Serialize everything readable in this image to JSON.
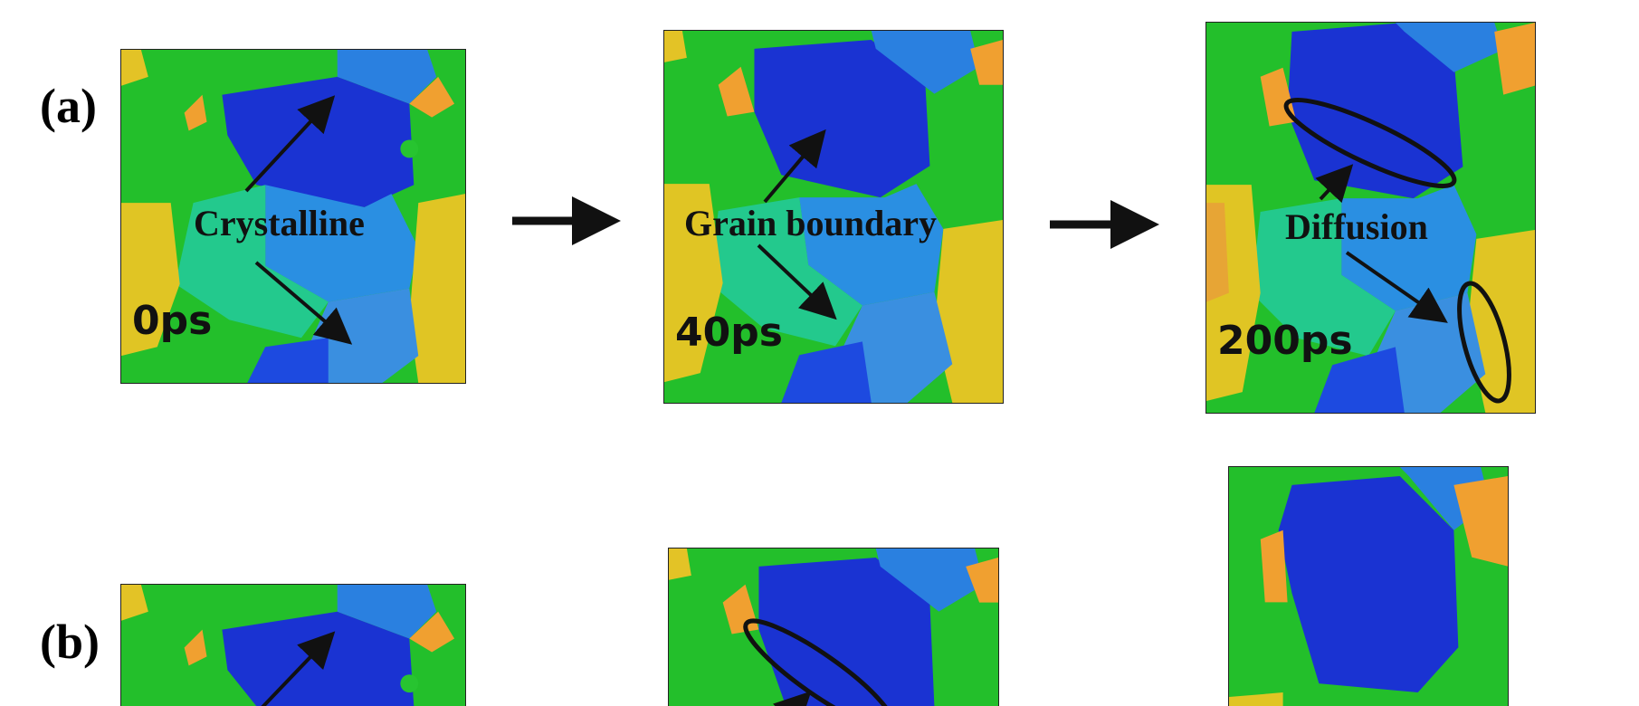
{
  "figure": {
    "row_a": {
      "label": "(a)",
      "frames": [
        {
          "time": "0ps",
          "annotation": "Crystalline"
        },
        {
          "time": "40ps",
          "annotation": "Grain boundary"
        },
        {
          "time": "200ps",
          "annotation": "Diffusion"
        }
      ]
    },
    "row_b": {
      "label": "(b)"
    },
    "colors": {
      "green": "#22c02a",
      "blue": "#1a35d4",
      "light_blue": "#2a8ee0",
      "teal": "#22c98a",
      "yellow": "#e0c522",
      "orange": "#f0a030",
      "annotation": "#111111"
    }
  }
}
